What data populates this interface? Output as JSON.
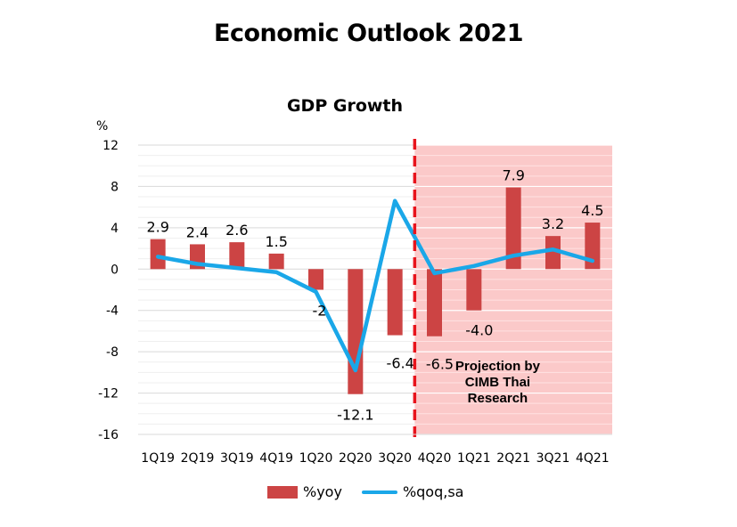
{
  "page": {
    "title": "Economic Outlook 2021"
  },
  "chart_data": {
    "type": "bar",
    "title": "GDP Growth",
    "ylabel": "%",
    "xlabel": "",
    "categories": [
      "1Q19",
      "2Q19",
      "3Q19",
      "4Q19",
      "1Q20",
      "2Q20",
      "3Q20",
      "4Q20",
      "1Q21",
      "2Q21",
      "3Q21",
      "4Q21"
    ],
    "ylim": [
      -16,
      12
    ],
    "yticks": [
      12,
      8,
      4,
      0,
      -4,
      -8,
      -12,
      -16
    ],
    "series": [
      {
        "name": "%yoy",
        "type": "bar",
        "color": "#cc4444",
        "values": [
          2.9,
          2.4,
          2.6,
          1.5,
          -2,
          -12.1,
          -6.4,
          -6.5,
          -4.0,
          7.9,
          3.2,
          4.5
        ],
        "labels": [
          "2.9",
          "2.4",
          "2.6",
          "1.5",
          "-2",
          "-12.1",
          "-6.4",
          "-6.5",
          "-4.0",
          "7.9",
          "3.2",
          "4.5"
        ]
      },
      {
        "name": "%qoq,sa",
        "type": "line",
        "color": "#1aa7e8",
        "values": [
          1.2,
          0.5,
          0.1,
          -0.3,
          -2.2,
          -9.8,
          6.6,
          -0.4,
          0.3,
          1.3,
          1.9,
          0.8
        ]
      }
    ],
    "projection": {
      "start_category": "4Q20",
      "label_lines": [
        "Projection by",
        "CIMB Thai",
        "Research"
      ],
      "band_color": "#fbc9c9",
      "divider_color": "#e8141c"
    },
    "grid": true,
    "legend_position": "bottom"
  }
}
